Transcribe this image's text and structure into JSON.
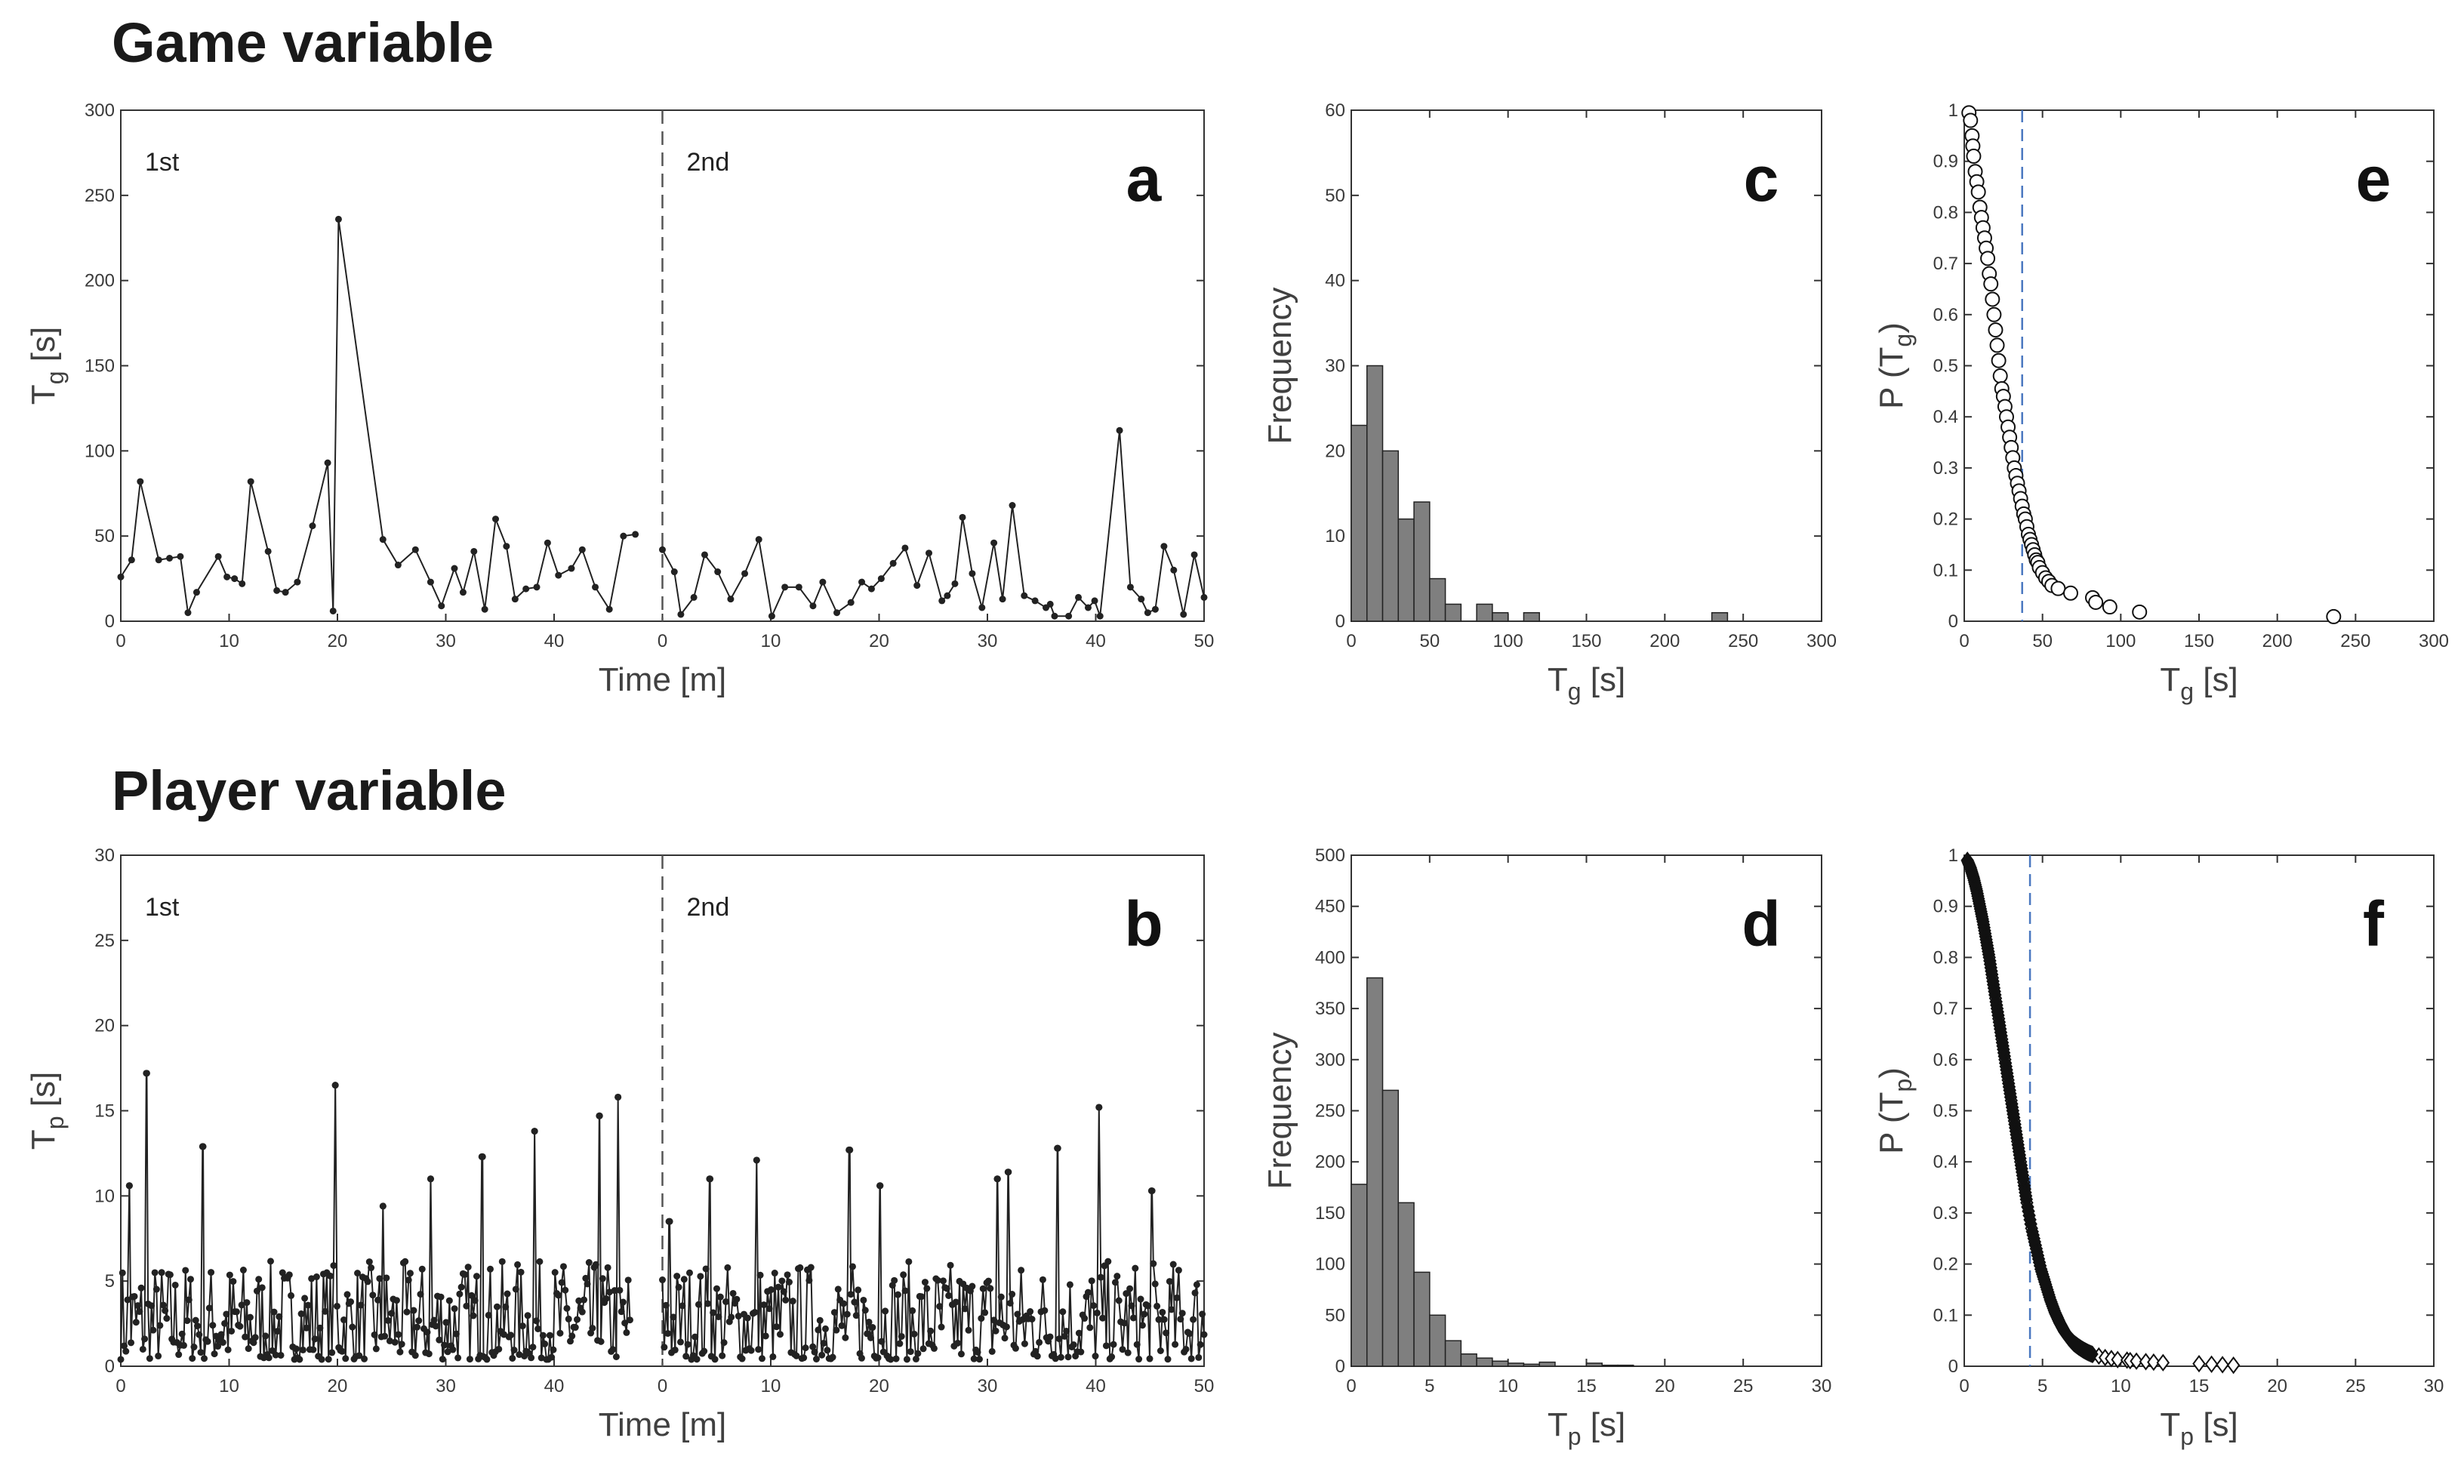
{
  "titles": {
    "game": "Game variable",
    "player": "Player variable"
  },
  "chart_data": [
    {
      "id": "a",
      "type": "line",
      "panel_label": "a",
      "xlabel": "Time [m]",
      "ylabel_main": "T",
      "ylabel_sub": "g",
      "ylabel_tail": " [s]",
      "ylim": [
        0,
        300
      ],
      "yticks": [
        0,
        50,
        100,
        150,
        200,
        250,
        300
      ],
      "xlim": [
        0,
        50
      ],
      "xticks": [
        0,
        10,
        20,
        30,
        40,
        50
      ],
      "half_labels": [
        "1st",
        "2nd"
      ],
      "series": [
        {
          "name": "1st half",
          "x": [
            0,
            1,
            1.8,
            3.5,
            4.5,
            5.5,
            6.2,
            7,
            9,
            9.8,
            10.5,
            11.2,
            12,
            13.6,
            14.4,
            15.2,
            16.3,
            17.7,
            19.1,
            19.6,
            20.1,
            24.2,
            25.6,
            27.2,
            28.6,
            29.6,
            30.8,
            31.6,
            32.6,
            33.6,
            34.6,
            35.6,
            36.4,
            37.4,
            38.4,
            39.4,
            40.4,
            41.6,
            42.6,
            43.8,
            45.1,
            46.4,
            47.5
          ],
          "values": [
            26,
            36,
            82,
            36,
            37,
            38,
            5,
            17,
            38,
            26,
            25,
            22,
            82,
            41,
            18,
            17,
            23,
            56,
            93,
            6,
            236,
            48,
            33,
            42,
            23,
            9,
            31,
            17,
            41,
            7,
            60,
            44,
            13,
            19,
            20,
            46,
            27,
            31,
            42,
            20,
            7,
            50,
            51
          ]
        },
        {
          "name": "2nd half",
          "x": [
            0,
            1.1,
            1.7,
            2.9,
            3.9,
            5.1,
            6.3,
            7.6,
            8.9,
            10.1,
            11.3,
            12.6,
            13.9,
            14.8,
            16.1,
            17.4,
            18.4,
            19.3,
            20.2,
            21.3,
            22.4,
            23.5,
            24.6,
            25.8,
            26.3,
            27,
            27.7,
            28.6,
            29.5,
            30.6,
            31.4,
            32.3,
            33.4,
            34.4,
            35.4,
            35.8,
            36.2,
            37.5,
            38.4,
            39.3,
            39.9,
            40.4,
            42.2,
            43.2,
            44.2,
            44.8,
            45.5,
            46.3,
            47.2,
            48.1,
            49.1,
            50
          ],
          "values": [
            42,
            29,
            4,
            14,
            39,
            29,
            13,
            28,
            48,
            3,
            20,
            20,
            9,
            23,
            5,
            11,
            23,
            19,
            25,
            34,
            43,
            21,
            40,
            12,
            15,
            22,
            61,
            28,
            8,
            46,
            13,
            68,
            15,
            12,
            8,
            10,
            3,
            3,
            14,
            8,
            12,
            3,
            112,
            20,
            13,
            5,
            7,
            44,
            30,
            4,
            39,
            14
          ]
        }
      ]
    },
    {
      "id": "b",
      "type": "line",
      "panel_label": "b",
      "xlabel": "Time [m]",
      "ylabel_main": "T",
      "ylabel_sub": "p",
      "ylabel_tail": " [s]",
      "ylim": [
        0,
        30
      ],
      "yticks": [
        0,
        5,
        10,
        15,
        20,
        25,
        30
      ],
      "xlim": [
        0,
        50
      ],
      "xticks": [
        0,
        10,
        20,
        30,
        40,
        50
      ],
      "half_labels": [
        "1st",
        "2nd"
      ],
      "peaks_1st": {
        "x": [
          0.8,
          2.4,
          7.6,
          19.8,
          24.2,
          28.6,
          33.4,
          38.2,
          44.2,
          45.9
        ],
        "values": [
          10.6,
          17.2,
          12.9,
          16.5,
          9.4,
          11.0,
          12.3,
          13.8,
          14.7,
          15.8
        ]
      },
      "peaks_2nd": {
        "x": [
          0.6,
          4.4,
          8.7,
          17.3,
          20.1,
          30.9,
          31.9,
          36.5,
          40.3,
          45.2
        ],
        "values": [
          8.5,
          11.0,
          12.1,
          12.7,
          10.6,
          11.0,
          11.4,
          12.8,
          15.2,
          10.3
        ]
      }
    },
    {
      "id": "c",
      "type": "bar",
      "panel_label": "c",
      "xlabel_main": "T",
      "xlabel_sub": "g",
      "xlabel_tail": " [s]",
      "ylabel": "Frequency",
      "xlim": [
        0,
        300
      ],
      "xticks": [
        0,
        50,
        100,
        150,
        200,
        250,
        300
      ],
      "ylim": [
        0,
        60
      ],
      "yticks": [
        0,
        10,
        20,
        30,
        40,
        50,
        60
      ],
      "bin_width": 10,
      "bin_starts": [
        0,
        10,
        20,
        30,
        40,
        50,
        60,
        80,
        90,
        110,
        230
      ],
      "values": [
        23,
        30,
        20,
        12,
        14,
        5,
        2,
        2,
        1,
        1,
        1
      ]
    },
    {
      "id": "d",
      "type": "bar",
      "panel_label": "d",
      "xlabel_main": "T",
      "xlabel_sub": "p",
      "xlabel_tail": " [s]",
      "ylabel": "Frequency",
      "xlim": [
        0,
        30
      ],
      "xticks": [
        0,
        5,
        10,
        15,
        20,
        25,
        30
      ],
      "ylim": [
        0,
        500
      ],
      "yticks": [
        0,
        50,
        100,
        150,
        200,
        250,
        300,
        350,
        400,
        450,
        500
      ],
      "bin_width": 1,
      "bin_starts": [
        0,
        1,
        2,
        3,
        4,
        5,
        6,
        7,
        8,
        9,
        10,
        11,
        12,
        15,
        16,
        17
      ],
      "values": [
        178,
        380,
        270,
        160,
        92,
        50,
        25,
        12,
        8,
        5,
        3,
        2,
        4,
        3,
        1,
        1
      ]
    },
    {
      "id": "e",
      "type": "scatter",
      "panel_label": "e",
      "xlabel_main": "T",
      "xlabel_sub": "g",
      "xlabel_tail": " [s]",
      "ylabel_main": "P (T",
      "ylabel_sub": "g",
      "ylabel_tail": ")",
      "xlim": [
        0,
        300
      ],
      "xticks": [
        0,
        50,
        100,
        150,
        200,
        250,
        300
      ],
      "ylim": [
        0,
        1
      ],
      "yticks": [
        0,
        0.1,
        0.2,
        0.3,
        0.4,
        0.5,
        0.6,
        0.7,
        0.8,
        0.9,
        1
      ],
      "marker": "circle",
      "mean_line_x": 37,
      "x": [
        3,
        4,
        5,
        5.5,
        6,
        7,
        8,
        9,
        10,
        11,
        12,
        13,
        14,
        15,
        16,
        17,
        18,
        19,
        20,
        21,
        22,
        23,
        24,
        25,
        26,
        27,
        28,
        29,
        30,
        31,
        32,
        33,
        34,
        35,
        36,
        37,
        38,
        39,
        40,
        41,
        42,
        43,
        44,
        45,
        46,
        47,
        48,
        50,
        52,
        54,
        56,
        60,
        68,
        82,
        84,
        93,
        112,
        236
      ],
      "values": [
        0.995,
        0.98,
        0.95,
        0.93,
        0.91,
        0.88,
        0.86,
        0.84,
        0.81,
        0.79,
        0.77,
        0.75,
        0.73,
        0.71,
        0.68,
        0.66,
        0.63,
        0.6,
        0.57,
        0.54,
        0.51,
        0.48,
        0.455,
        0.44,
        0.42,
        0.4,
        0.38,
        0.36,
        0.34,
        0.32,
        0.3,
        0.285,
        0.27,
        0.255,
        0.24,
        0.225,
        0.21,
        0.2,
        0.185,
        0.17,
        0.16,
        0.15,
        0.14,
        0.13,
        0.12,
        0.115,
        0.105,
        0.095,
        0.085,
        0.078,
        0.07,
        0.064,
        0.055,
        0.046,
        0.037,
        0.028,
        0.018,
        0.009
      ]
    },
    {
      "id": "f",
      "type": "scatter",
      "panel_label": "f",
      "xlabel_main": "T",
      "xlabel_sub": "p",
      "xlabel_tail": " [s]",
      "ylabel_main": "P (T",
      "ylabel_sub": "p",
      "ylabel_tail": ")",
      "xlim": [
        0,
        30
      ],
      "xticks": [
        0,
        5,
        10,
        15,
        20,
        25,
        30
      ],
      "ylim": [
        0,
        1
      ],
      "yticks": [
        0,
        0.1,
        0.2,
        0.3,
        0.4,
        0.5,
        0.6,
        0.7,
        0.8,
        0.9,
        1
      ],
      "marker": "diamond",
      "mean_line_x": 4.2,
      "x": [
        0.2,
        0.4,
        0.6,
        0.8,
        1.0,
        1.2,
        1.4,
        1.6,
        1.8,
        2.0,
        2.2,
        2.4,
        2.6,
        2.8,
        3.0,
        3.2,
        3.4,
        3.6,
        3.8,
        4.0,
        4.3,
        4.6,
        4.9,
        5.2,
        5.5,
        5.8,
        6.1,
        6.4,
        6.7,
        7.0,
        7.3,
        7.6,
        7.9,
        8.2,
        8.6,
        9.0,
        9.4,
        9.8,
        10.4,
        10.6,
        11.0,
        11.6,
        12.1,
        12.7,
        15.0,
        15.8,
        16.5,
        17.2
      ],
      "values": [
        0.99,
        0.975,
        0.955,
        0.93,
        0.9,
        0.87,
        0.835,
        0.8,
        0.76,
        0.72,
        0.68,
        0.64,
        0.6,
        0.56,
        0.52,
        0.48,
        0.44,
        0.4,
        0.36,
        0.32,
        0.27,
        0.23,
        0.19,
        0.16,
        0.13,
        0.105,
        0.085,
        0.068,
        0.055,
        0.045,
        0.038,
        0.032,
        0.027,
        0.023,
        0.02,
        0.017,
        0.015,
        0.013,
        0.012,
        0.011,
        0.01,
        0.009,
        0.008,
        0.007,
        0.005,
        0.004,
        0.003,
        0.002
      ]
    }
  ]
}
